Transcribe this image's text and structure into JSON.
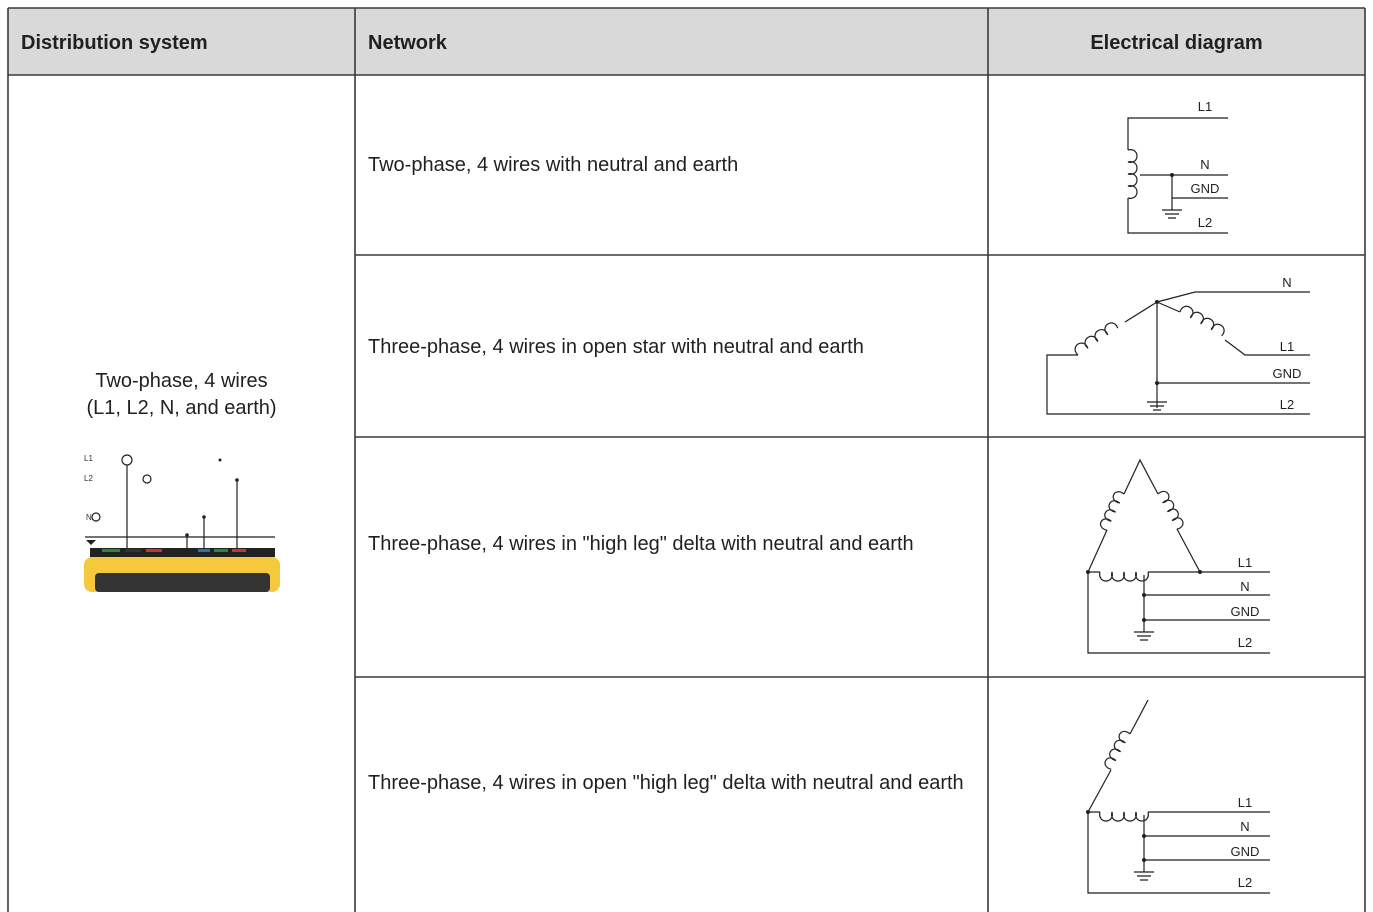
{
  "table": {
    "headers": [
      "Distribution system",
      "Network",
      "Electrical diagram"
    ],
    "system": {
      "label": "Two-phase, 4 wires",
      "sublabel": "(L1, L2, N, and earth)",
      "device_labels": [
        "L1",
        "L2",
        "N"
      ]
    },
    "rows": [
      {
        "network": "Two-phase, 4 wires with neutral and earth",
        "diagram_labels": [
          "L1",
          "N",
          "GND",
          "L2"
        ]
      },
      {
        "network": "Three-phase, 4 wires in open star with neutral and earth",
        "diagram_labels": [
          "N",
          "L1",
          "GND",
          "L2"
        ]
      },
      {
        "network": "Three-phase, 4 wires in \"high leg\" delta with neutral and earth",
        "diagram_labels": [
          "L1",
          "N",
          "GND",
          "L2"
        ]
      },
      {
        "network": "Three-phase, 4 wires in open \"high leg\" delta with neutral and earth",
        "diagram_labels": [
          "L1",
          "N",
          "GND",
          "L2"
        ]
      }
    ]
  }
}
